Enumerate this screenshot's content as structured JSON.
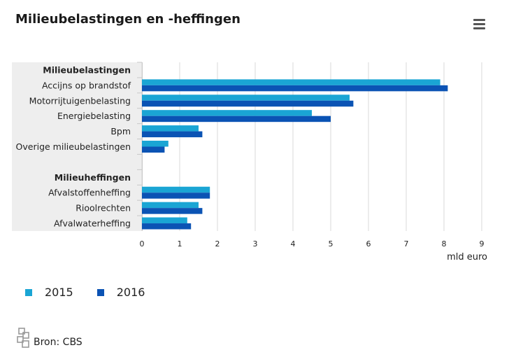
{
  "title": "Milieubelastingen en -heffingen",
  "menu_icon": "hamburger-menu-icon",
  "colors": {
    "s2015": "#1aa5d4",
    "s2016": "#0b53b4",
    "band": "#eeeeee",
    "grid": "#d8d8d8"
  },
  "legend": [
    {
      "label": "2015"
    },
    {
      "label": "2016"
    }
  ],
  "source": {
    "label": "Bron:",
    "name": "CBS",
    "icon": "cbs-logo-icon"
  },
  "chart_data": {
    "type": "bar",
    "orientation": "horizontal",
    "categories": [
      "Milieubelastingen",
      "Accijns op brandstof",
      "Motorrijtuigenbelasting",
      "Energiebelasting",
      "Bpm",
      "Overige milieubelastingen",
      "",
      "Milieuheffingen",
      "Afvalstoffenheffing",
      "Rioolrechten",
      "Afvalwaterheffing"
    ],
    "group_headers": [
      "Milieubelastingen",
      "Milieuheffingen"
    ],
    "series": [
      {
        "name": "2015",
        "values": [
          null,
          7.9,
          5.5,
          4.5,
          1.5,
          0.7,
          null,
          null,
          1.8,
          1.5,
          1.2
        ]
      },
      {
        "name": "2016",
        "values": [
          null,
          8.1,
          5.6,
          5.0,
          1.6,
          0.6,
          null,
          null,
          1.8,
          1.6,
          1.3
        ]
      }
    ],
    "xlabel": "mld euro",
    "xlim": [
      0,
      9
    ],
    "xticks": [
      "0",
      "1",
      "2",
      "3",
      "4",
      "5",
      "6",
      "7",
      "8",
      "9"
    ],
    "grid": true,
    "legend_position": "bottom-left"
  }
}
